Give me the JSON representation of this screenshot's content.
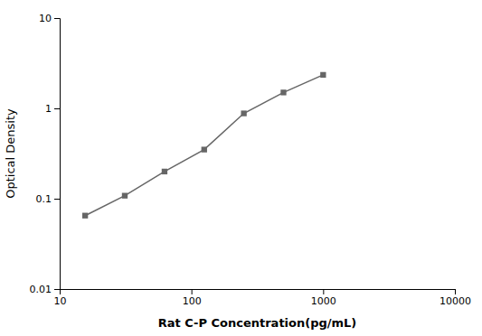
{
  "chart_data": {
    "type": "line",
    "x": [
      15.6,
      31.2,
      62.5,
      125,
      250,
      500,
      1000
    ],
    "values": [
      0.065,
      0.108,
      0.2,
      0.35,
      0.88,
      1.5,
      2.35
    ],
    "xlabel": "Rat C-P Concentration(pg/mL)",
    "ylabel": "Optical Density",
    "xlim": [
      10,
      10000
    ],
    "ylim": [
      0.01,
      10
    ],
    "xticks": [
      10,
      100,
      1000,
      10000
    ],
    "yticks": [
      0.01,
      0.1,
      1,
      10
    ],
    "log": true,
    "grid": false,
    "color": "#666666",
    "marker": "square"
  }
}
